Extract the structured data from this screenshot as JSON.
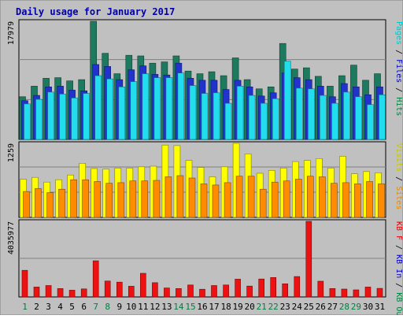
{
  "chart_data": {
    "type": "bar",
    "title": "Daily usage for January 2017",
    "categories": [
      "1",
      "2",
      "3",
      "4",
      "5",
      "6",
      "7",
      "8",
      "9",
      "10",
      "11",
      "12",
      "13",
      "14",
      "15",
      "16",
      "17",
      "18",
      "19",
      "20",
      "21",
      "22",
      "23",
      "24",
      "25",
      "26",
      "27",
      "28",
      "29",
      "30",
      "31"
    ],
    "weekend_days": [
      "1",
      "7",
      "8",
      "14",
      "15",
      "21",
      "22",
      "28",
      "29"
    ],
    "panels": [
      {
        "id": "hits",
        "tick_label": "17979",
        "ylim": [
          0,
          17979
        ],
        "right_label": [
          {
            "text": "Pages",
            "color": "#00c8c8"
          },
          {
            "text": " / ",
            "color": "#000000"
          },
          {
            "text": "Files",
            "color": "#0000c0"
          },
          {
            "text": " / ",
            "color": "#000000"
          },
          {
            "text": "Hits",
            "color": "#008040"
          }
        ],
        "series": [
          {
            "name": "Hits",
            "color": "#1e7a5e",
            "values": [
              6500,
              8100,
              9300,
              9400,
              8900,
              9100,
              17979,
              13100,
              10000,
              12800,
              12700,
              11600,
              11800,
              12700,
              10400,
              10000,
              10300,
              9700,
              12400,
              9100,
              7700,
              8000,
              14600,
              10700,
              10900,
              9600,
              8100,
              9700,
              11300,
              9000,
              10000
            ]
          },
          {
            "name": "Files",
            "color": "#2233cc",
            "values": [
              5900,
              6700,
              8000,
              8100,
              7500,
              7400,
              11400,
              11100,
              9100,
              10600,
              11200,
              9900,
              9800,
              11600,
              9300,
              9000,
              9000,
              7600,
              9000,
              8000,
              6600,
              7100,
              10100,
              9400,
              9100,
              8100,
              6500,
              8500,
              8000,
              6800,
              8000
            ]
          },
          {
            "name": "Pages",
            "color": "#22ddee",
            "values": [
              5400,
              6100,
              7200,
              6900,
              6300,
              7000,
              9700,
              9200,
              8000,
              8800,
              10000,
              9400,
              9400,
              10100,
              8200,
              7000,
              7100,
              5500,
              8100,
              6700,
              5500,
              6200,
              11900,
              7800,
              7700,
              6700,
              5500,
              7200,
              6500,
              5300,
              6800
            ]
          }
        ]
      },
      {
        "id": "visits",
        "tick_label": "1259",
        "ylim": [
          0,
          1259
        ],
        "right_label": [
          {
            "text": "Visits",
            "color": "#c8c800"
          },
          {
            "text": " / ",
            "color": "#000000"
          },
          {
            "text": "Sites",
            "color": "#e88a00"
          }
        ],
        "series": [
          {
            "name": "Visits",
            "color": "#ffff00",
            "values": [
              650,
              680,
              600,
              640,
              720,
              920,
              830,
              820,
              840,
              840,
              860,
              870,
              1230,
              1220,
              970,
              850,
              690,
              860,
              1259,
              1080,
              750,
              800,
              840,
              950,
              970,
              1000,
              840,
              1040,
              740,
              780,
              760
            ]
          },
          {
            "name": "Sites",
            "color": "#ff8c00",
            "values": [
              440,
              490,
              420,
              480,
              640,
              640,
              610,
              580,
              590,
              620,
              620,
              630,
              690,
              710,
              670,
              570,
              550,
              590,
              700,
              700,
              480,
              600,
              620,
              650,
              700,
              690,
              580,
              590,
              570,
              610,
              570
            ]
          }
        ]
      },
      {
        "id": "kbytes",
        "tick_label": "4035977",
        "ylim": [
          0,
          4035977
        ],
        "right_label": [
          {
            "text": "KB F",
            "color": "#e00000"
          },
          {
            "text": " / ",
            "color": "#000000"
          },
          {
            "text": "KB In",
            "color": "#0000c0"
          },
          {
            "text": " / ",
            "color": "#000000"
          },
          {
            "text": "KB Out",
            "color": "#008040"
          }
        ],
        "series": [
          {
            "name": "KB F",
            "color": "#ee1111",
            "values": [
              1420000,
              530000,
              610000,
              450000,
              360000,
              430000,
              1930000,
              850000,
              790000,
              570000,
              1260000,
              760000,
              480000,
              450000,
              640000,
              410000,
              610000,
              640000,
              950000,
              580000,
              960000,
              1040000,
              700000,
              1090000,
              4035977,
              840000,
              450000,
              420000,
              380000,
              530000,
              460000
            ]
          }
        ]
      }
    ]
  }
}
